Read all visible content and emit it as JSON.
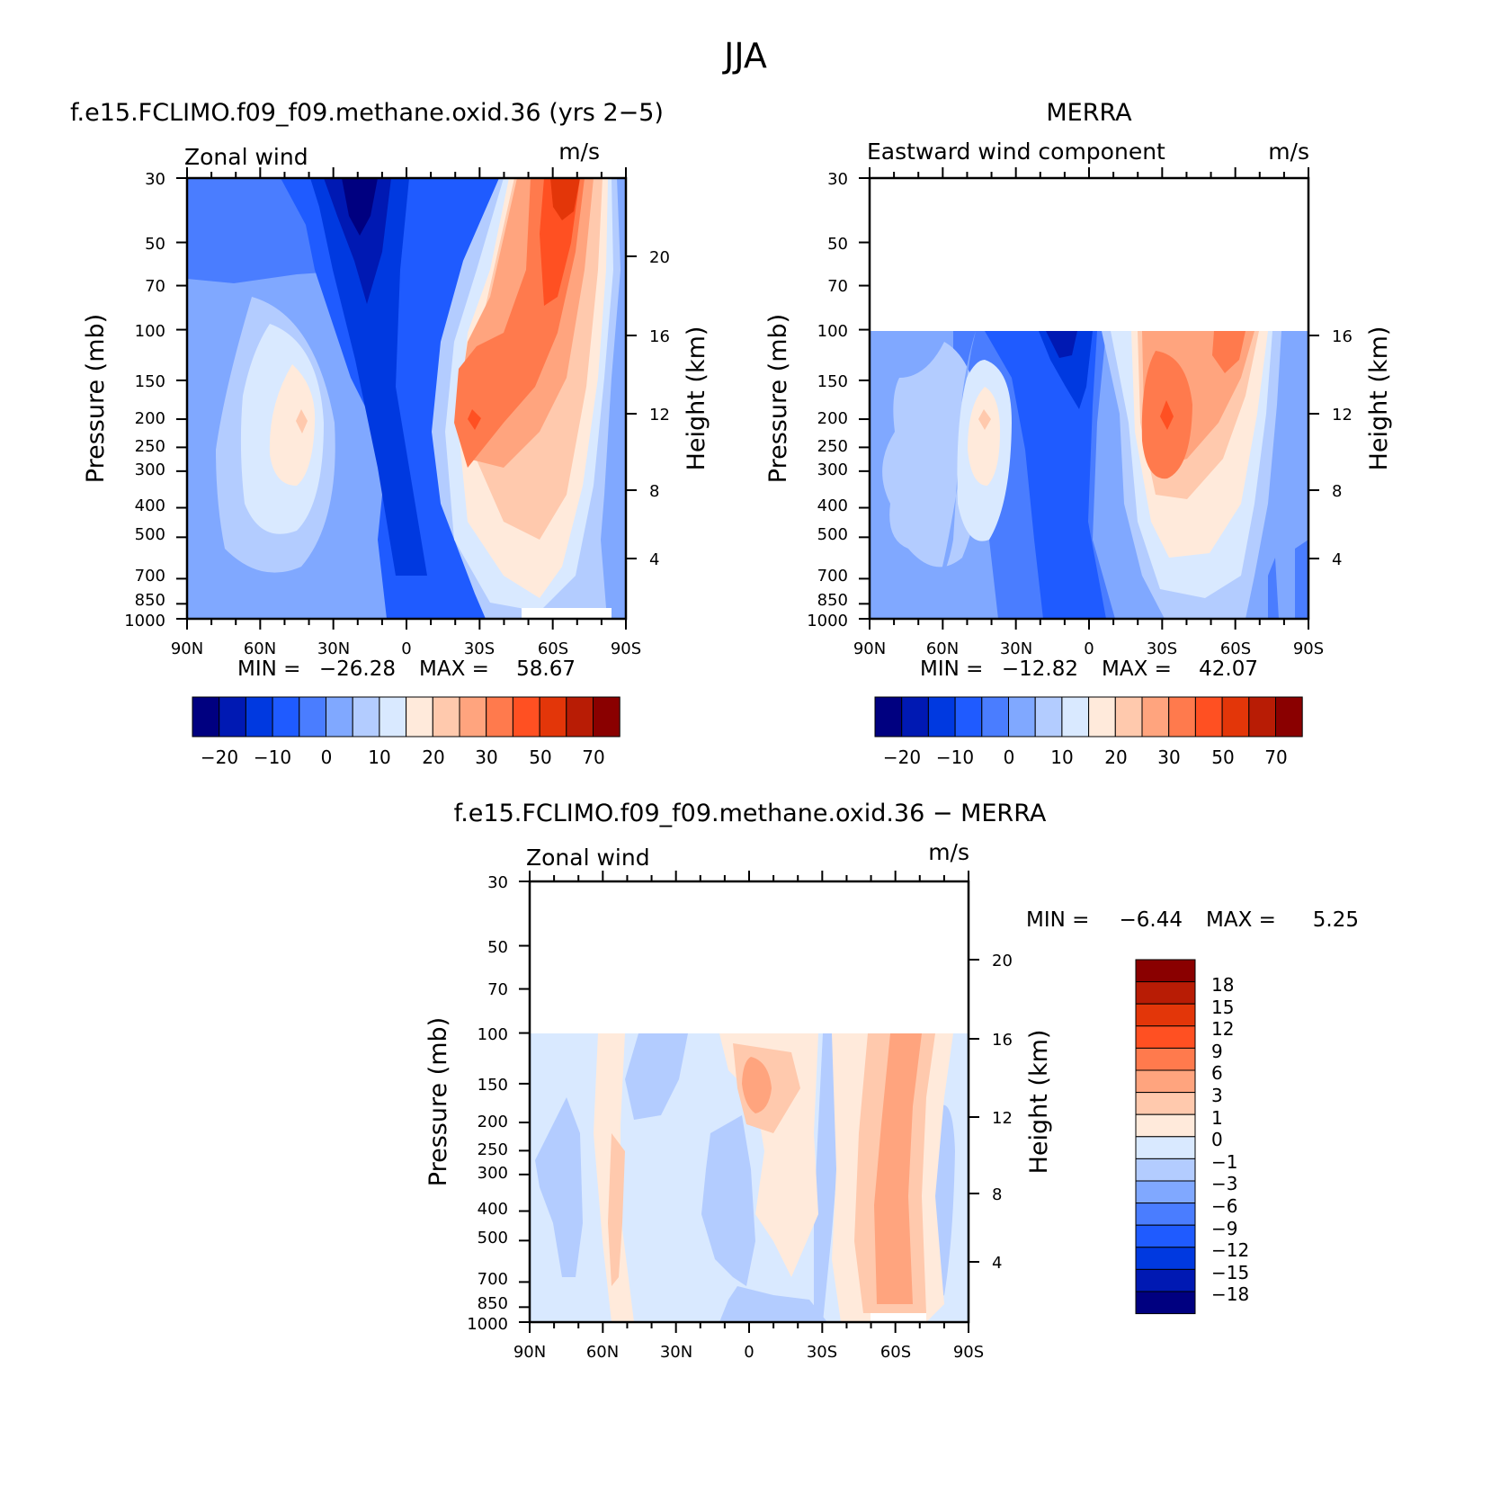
{
  "figure_title": "JJA",
  "chart_data": [
    {
      "type": "contour",
      "title": "f.e15.FCLIMO.f09_f09.methane.oxid.36 (yrs 2−5)",
      "left_label": "Zonal wind",
      "units": "m/s",
      "ylabel": "Pressure (mb)",
      "ylabel_right": "Height (km)",
      "x_ticks": [
        "90N",
        "60N",
        "30N",
        "0",
        "30S",
        "60S",
        "90S"
      ],
      "y_ticks": [
        "30",
        "50",
        "70",
        "100",
        "150",
        "200",
        "250",
        "300",
        "400",
        "500",
        "700",
        "850",
        "1000"
      ],
      "y_ticks_right": [
        "20",
        "16",
        "12",
        "8",
        "4"
      ],
      "min_label": "MIN =",
      "min_value": "−26.28",
      "max_label": "MAX =",
      "max_value": "58.67",
      "colorbar_labels": [
        "−20",
        "−10",
        "0",
        "10",
        "20",
        "30",
        "50",
        "70"
      ]
    },
    {
      "type": "contour",
      "title": "MERRA",
      "left_label": "Eastward wind component",
      "units": "m/s",
      "ylabel": "Pressure (mb)",
      "ylabel_right": "Height (km)",
      "x_ticks": [
        "90N",
        "60N",
        "30N",
        "0",
        "30S",
        "60S",
        "90S"
      ],
      "y_ticks": [
        "30",
        "50",
        "70",
        "100",
        "150",
        "200",
        "250",
        "300",
        "400",
        "500",
        "700",
        "850",
        "1000"
      ],
      "y_ticks_right": [
        "16",
        "12",
        "8",
        "4"
      ],
      "min_label": "MIN =",
      "min_value": "−12.82",
      "max_label": "MAX =",
      "max_value": "42.07",
      "colorbar_labels": [
        "−20",
        "−10",
        "0",
        "10",
        "20",
        "30",
        "50",
        "70"
      ]
    },
    {
      "type": "contour",
      "title": "f.e15.FCLIMO.f09_f09.methane.oxid.36 − MERRA",
      "left_label": "Zonal wind",
      "units": "m/s",
      "ylabel": "Pressure (mb)",
      "ylabel_right": "Height (km)",
      "x_ticks": [
        "90N",
        "60N",
        "30N",
        "0",
        "30S",
        "60S",
        "90S"
      ],
      "y_ticks": [
        "30",
        "50",
        "70",
        "100",
        "150",
        "200",
        "250",
        "300",
        "400",
        "500",
        "700",
        "850",
        "1000"
      ],
      "y_ticks_right": [
        "20",
        "16",
        "12",
        "8",
        "4"
      ],
      "min_label": "MIN =",
      "min_value": "−6.44",
      "max_label": "MAX =",
      "max_value": "5.25",
      "colorbar_labels": [
        "18",
        "15",
        "12",
        "9",
        "6",
        "3",
        "1",
        "0",
        "−1",
        "−3",
        "−6",
        "−9",
        "−12",
        "−15",
        "−18"
      ]
    }
  ],
  "palette": [
    "#000080",
    "#0019b3",
    "#0039e0",
    "#1f5bff",
    "#4a7dff",
    "#80a8ff",
    "#b3ccff",
    "#d9e9ff",
    "#ffeadb",
    "#ffc9ad",
    "#ffa47e",
    "#ff7a4d",
    "#ff5022",
    "#e33609",
    "#b81c05",
    "#8a0000"
  ]
}
